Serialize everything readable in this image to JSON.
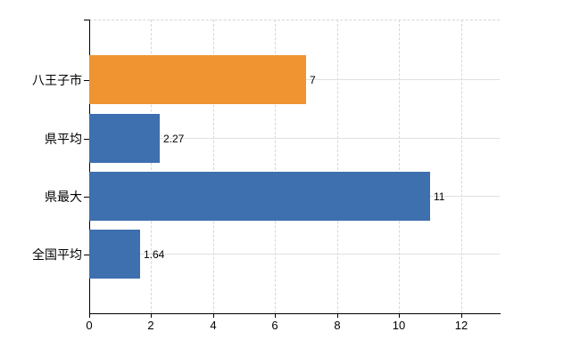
{
  "chart_data": {
    "type": "bar",
    "orientation": "horizontal",
    "title": "",
    "xlabel": "",
    "ylabel": "",
    "categories": [
      "八王子市",
      "県平均",
      "県最大",
      "全国平均"
    ],
    "values": [
      7,
      2.27,
      11,
      1.64
    ],
    "value_labels": [
      "7",
      "2.27",
      "11",
      "1.64"
    ],
    "bar_colors": [
      "#EF9431",
      "#3E6FAF",
      "#3E6FAF",
      "#3E6FAF"
    ],
    "x_ticks": [
      0,
      2,
      4,
      6,
      8,
      10,
      12
    ],
    "x_tick_labels": [
      "0",
      "2",
      "4",
      "6",
      "8",
      "10",
      "12"
    ],
    "xlim": [
      0,
      13.24
    ],
    "legend": "none",
    "grid": {
      "vertical_style": "dashed",
      "horizontal_style": "solid",
      "top_border_style": "dashed"
    },
    "colors": {
      "background": "#ffffff",
      "axis": "#000000",
      "vertical_gridline": "#d6d6d6",
      "horizontal_gridline": "#dce2dc",
      "text": "#000000",
      "accent_bar": "#EF9431",
      "default_bar": "#3E6FAF"
    }
  }
}
